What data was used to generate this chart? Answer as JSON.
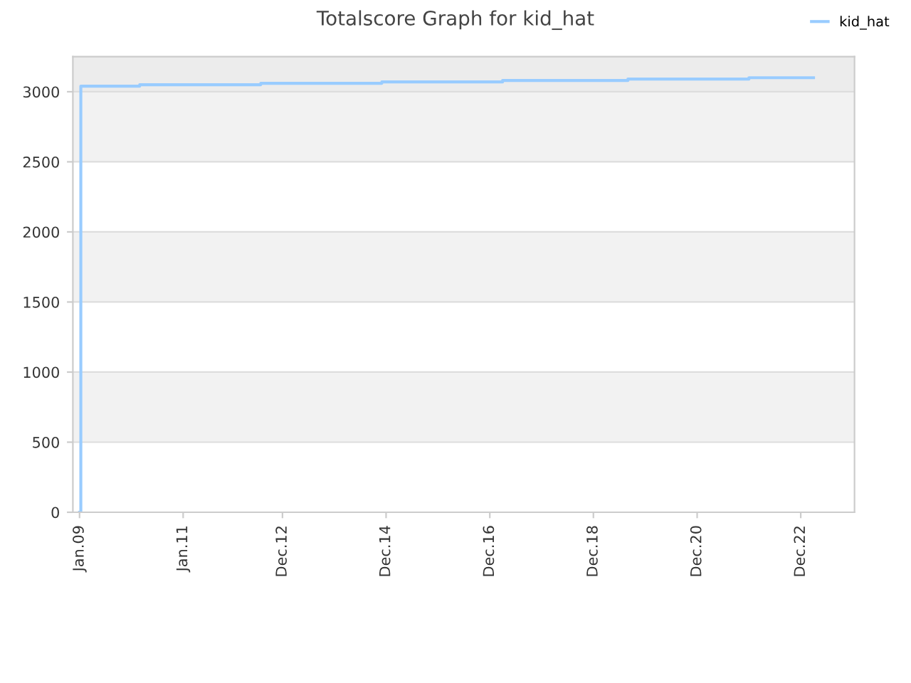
{
  "chart_data": {
    "type": "step",
    "title": "Totalscore Graph for kid_hat",
    "x": [
      "2009-01-01",
      "2009-01-10",
      "2010-03-01",
      "2012-07-01",
      "2014-11-01",
      "2017-03-01",
      "2019-08-01",
      "2021-12-01",
      "2023-03-01"
    ],
    "series": [
      {
        "name": "kid_hat",
        "color": "#99ccff",
        "values": [
          0,
          3040,
          3050,
          3060,
          3070,
          3080,
          3090,
          3100,
          3100
        ]
      }
    ],
    "xlim": [
      "2008-11-15",
      "2023-12-15"
    ],
    "xticks": [
      {
        "value": "2009-01-01",
        "label": "Jan.09"
      },
      {
        "value": "2011-01-01",
        "label": "Jan.11"
      },
      {
        "value": "2012-12-01",
        "label": "Dec.12"
      },
      {
        "value": "2014-12-01",
        "label": "Dec.14"
      },
      {
        "value": "2016-12-01",
        "label": "Dec.16"
      },
      {
        "value": "2018-12-01",
        "label": "Dec.18"
      },
      {
        "value": "2020-12-01",
        "label": "Dec.20"
      },
      {
        "value": "2022-12-01",
        "label": "Dec.22"
      }
    ],
    "ylim": [
      0,
      3250
    ],
    "yticks": [
      0,
      500,
      1000,
      1500,
      2000,
      2500,
      3000
    ],
    "bands": [
      {
        "axis": "y",
        "from": 500,
        "to": 1000,
        "color": "#f2f2f2"
      },
      {
        "axis": "y",
        "from": 1500,
        "to": 2000,
        "color": "#f2f2f2"
      },
      {
        "axis": "y",
        "from": 2500,
        "to": 3000,
        "color": "#f2f2f2"
      },
      {
        "axis": "y",
        "from": 3000,
        "to": 3250,
        "color": "#ececec"
      }
    ],
    "grid": "y",
    "legend": "top right"
  }
}
